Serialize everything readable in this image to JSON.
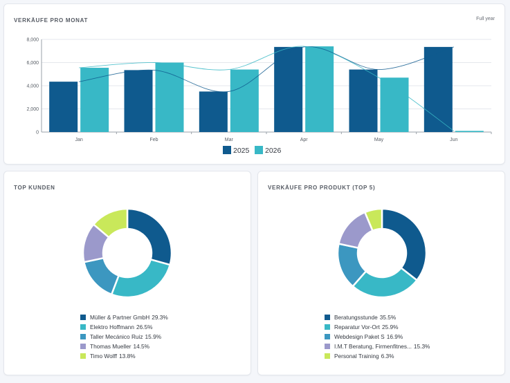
{
  "colors": {
    "s2025": "#0f5a8e",
    "s2026": "#38b8c6",
    "palette": [
      "#0f5a8e",
      "#38b8c6",
      "#3c97c0",
      "#9b99cb",
      "#c9e85a"
    ]
  },
  "monthly": {
    "title": "VERKÄUFE PRO MONAT",
    "range_label": "Full year"
  },
  "customers": {
    "title": "TOP KUNDEN"
  },
  "products": {
    "title": "VERKÄUFE PRO PRODUKT (TOP 5)"
  },
  "chart_data": [
    {
      "type": "bar",
      "title": "VERKÄUFE PRO MONAT",
      "categories": [
        "Jan",
        "Feb",
        "Mar",
        "Apr",
        "May",
        "Jun"
      ],
      "series": [
        {
          "name": "2025",
          "values": [
            4350,
            5350,
            3500,
            7350,
            5400,
            7350
          ]
        },
        {
          "name": "2026",
          "values": [
            5550,
            6000,
            5400,
            7400,
            4700,
            100
          ]
        }
      ],
      "ylim": [
        0,
        8000
      ],
      "yticks": [
        0,
        2000,
        4000,
        6000,
        8000
      ],
      "ytick_labels": [
        "0",
        "2,000",
        "4,000",
        "6,000",
        "8,000"
      ],
      "grid": true,
      "legend": "bottom",
      "overlay": "smoothed trend line per series"
    },
    {
      "type": "pie",
      "variant": "donut",
      "title": "TOP KUNDEN",
      "labels": [
        "Müller & Partner GmbH",
        "Elektro Hoffmann",
        "Taller Mecánico Ruiz",
        "Thomas Mueller",
        "Timo Wolff"
      ],
      "values": [
        29.3,
        26.5,
        15.9,
        14.5,
        13.8
      ],
      "value_labels": [
        "29.3%",
        "26.5%",
        "15.9%",
        "14.5%",
        "13.8%"
      ],
      "legend": "bottom"
    },
    {
      "type": "pie",
      "variant": "donut",
      "title": "VERKÄUFE PRO PRODUKT (TOP 5)",
      "labels": [
        "Beratungsstunde",
        "Reparatur Vor-Ort",
        "Webdesign Paket S",
        "I.M.T Beratung, Firmenfitnes...",
        "Personal Training"
      ],
      "values": [
        35.5,
        25.9,
        16.9,
        15.3,
        6.3
      ],
      "value_labels": [
        "35.5%",
        "25.9%",
        "16.9%",
        "15.3%",
        "6.3%"
      ],
      "legend": "bottom"
    }
  ]
}
